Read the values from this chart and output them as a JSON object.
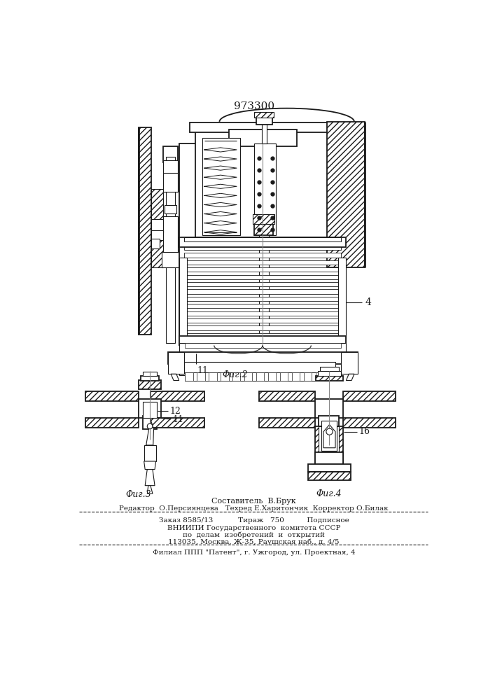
{
  "patent_number": "973300",
  "fig2_label": "Φиг.2",
  "fig3_label": "Φиг.3",
  "fig4_label": "Φиг.4",
  "label_4": "4",
  "label_11": "11",
  "label_12": "12",
  "label_16": "16",
  "footer_line1": "Составитель  В.Брук",
  "footer_line2": "Редактор  О.Персиянцева   Техред Е.Харитончик  Корректор О.Билак",
  "footer_line3": "Заказ 8585/13           Тираж   750          Подписное",
  "footer_line4": "ВНИИПИ Государственного  комитета СССР",
  "footer_line5": "по  делам  изобретений  и  открытий",
  "footer_line6": "113035, Москва, Ж-35, Раушская наб., д. 4/5",
  "footer_line7": "Филиал ППП \"Патент\", г. Ужгород, ул. Проектная, 4",
  "bg_color": "#ffffff",
  "line_color": "#1a1a1a"
}
